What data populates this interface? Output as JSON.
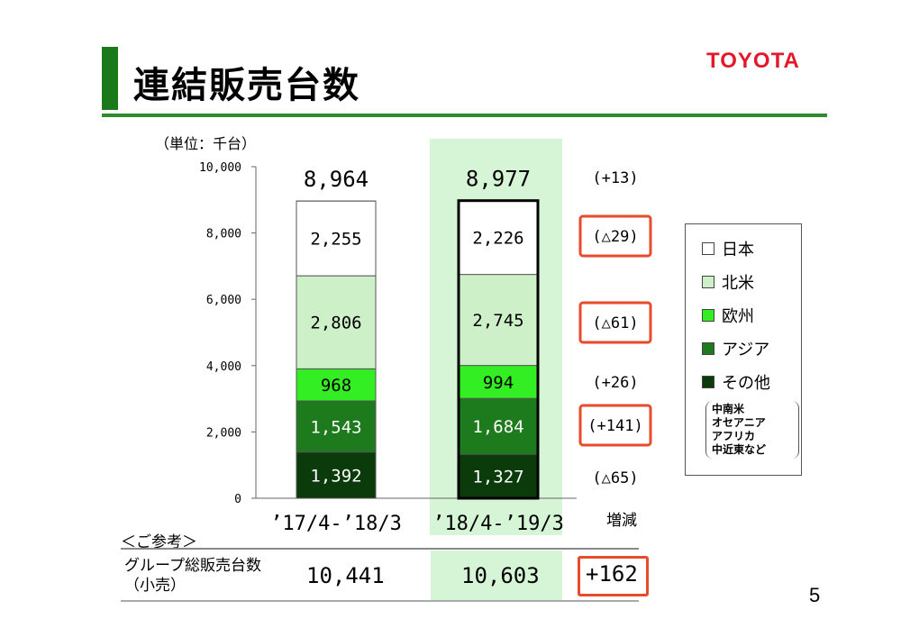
{
  "header": {
    "title": "連結販売台数",
    "logo": "TOYOTA",
    "unit": "（単位：千台）",
    "page_number": "5"
  },
  "legend": {
    "items": [
      {
        "label": "日本",
        "color": "#ffffff"
      },
      {
        "label": "北米",
        "color": "#cdf0c8"
      },
      {
        "label": "欧州",
        "color": "#33ee22"
      },
      {
        "label": "アジア",
        "color": "#1d7a1d"
      },
      {
        "label": "その他",
        "color": "#0b3b0b"
      }
    ],
    "note": [
      "中南米",
      "オセアニア",
      "アフリカ",
      "中近東など"
    ]
  },
  "chart_data": {
    "type": "bar",
    "stacked": true,
    "categories": [
      "’17/4-’18/3",
      "’18/4-’19/3"
    ],
    "ylim": [
      0,
      10000
    ],
    "yticks": [
      "0",
      "2,000",
      "4,000",
      "6,000",
      "8,000",
      "10,000"
    ],
    "series": [
      {
        "name": "その他",
        "values": [
          1392,
          1327
        ],
        "labels": [
          "1,392",
          "1,327"
        ],
        "color": "#0b3b0b",
        "text_color": "#ffffff"
      },
      {
        "name": "アジア",
        "values": [
          1543,
          1684
        ],
        "labels": [
          "1,543",
          "1,684"
        ],
        "color": "#1d7a1d",
        "text_color": "#ffffff"
      },
      {
        "name": "欧州",
        "values": [
          968,
          994
        ],
        "labels": [
          "968",
          "994"
        ],
        "color": "#33ee22",
        "text_color": "#000000"
      },
      {
        "name": "北米",
        "values": [
          2806,
          2745
        ],
        "labels": [
          "2,806",
          "2,745"
        ],
        "color": "#cdf0c8",
        "text_color": "#000000"
      },
      {
        "name": "日本",
        "values": [
          2255,
          2226
        ],
        "labels": [
          "2,255",
          "2,226"
        ],
        "color": "#ffffff",
        "text_color": "#000000"
      }
    ],
    "totals": [
      "8,964",
      "8,977"
    ],
    "change_header": "増減",
    "changes": [
      "(+13)",
      "(△29)",
      "(△61)",
      "(+26)",
      "(+141)",
      "(△65)"
    ],
    "changes_highlighted": [
      false,
      true,
      true,
      false,
      true,
      false
    ]
  },
  "reference": {
    "heading": "＜ご参考＞",
    "row_label_line1": "グループ総販売台数",
    "row_label_line2": "（小売）",
    "value_1": "10,441",
    "value_2": "10,603",
    "change": "+162"
  }
}
